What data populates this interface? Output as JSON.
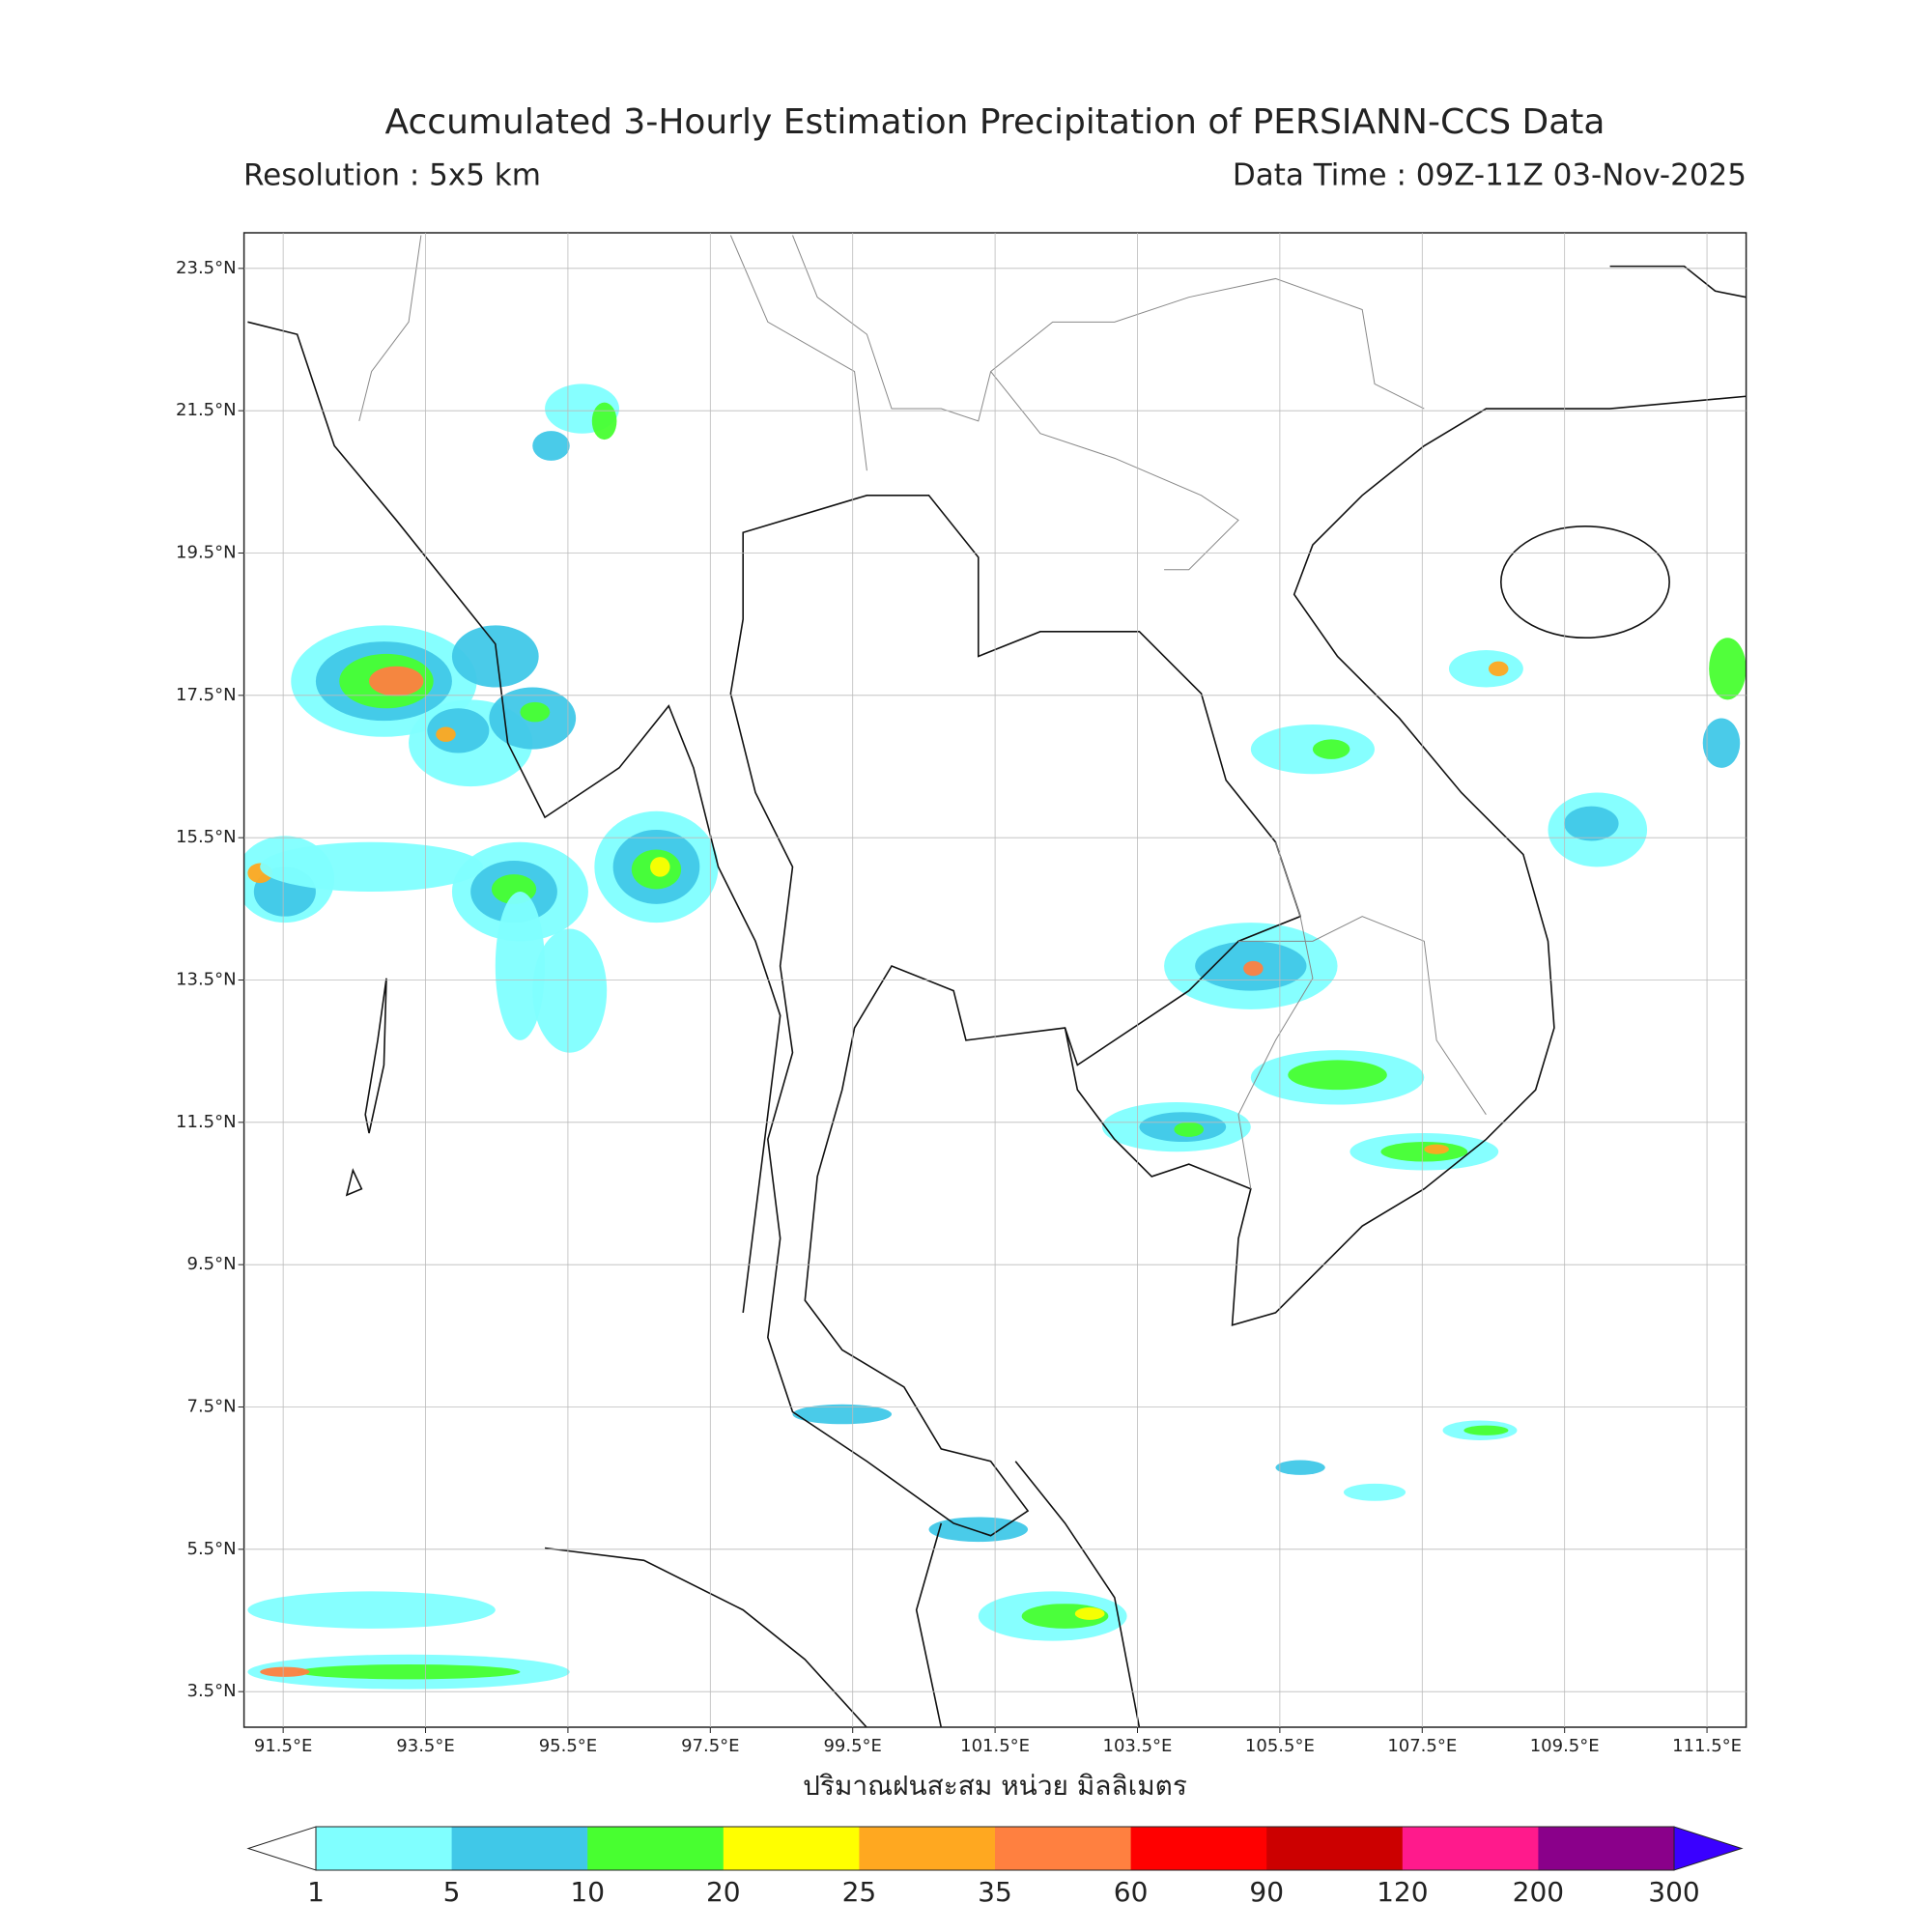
{
  "header": {
    "title": "Accumulated 3-Hourly Estimation Precipitation of PERSIANN-CCS Data",
    "resolution": "Resolution : 5x5 km",
    "data_time": "Data Time : 09Z-11Z 03-Nov-2025"
  },
  "map": {
    "xlim": [
      90.95,
      112.05
    ],
    "ylim": [
      3.0,
      24.0
    ],
    "grid": true,
    "xticks": [
      {
        "value": 91.5,
        "label": "91.5°E"
      },
      {
        "value": 93.5,
        "label": "93.5°E"
      },
      {
        "value": 95.5,
        "label": "95.5°E"
      },
      {
        "value": 97.5,
        "label": "97.5°E"
      },
      {
        "value": 99.5,
        "label": "99.5°E"
      },
      {
        "value": 101.5,
        "label": "101.5°E"
      },
      {
        "value": 103.5,
        "label": "103.5°E"
      },
      {
        "value": 105.5,
        "label": "105.5°E"
      },
      {
        "value": 107.5,
        "label": "107.5°E"
      },
      {
        "value": 109.5,
        "label": "109.5°E"
      },
      {
        "value": 111.5,
        "label": "111.5°E"
      }
    ],
    "yticks": [
      {
        "value": 23.5,
        "label": "23.5°N"
      },
      {
        "value": 21.5,
        "label": "21.5°N"
      },
      {
        "value": 19.5,
        "label": "19.5°N"
      },
      {
        "value": 17.5,
        "label": "17.5°N"
      },
      {
        "value": 15.5,
        "label": "15.5°N"
      },
      {
        "value": 13.5,
        "label": "13.5°N"
      },
      {
        "value": 11.5,
        "label": "11.5°N"
      },
      {
        "value": 9.5,
        "label": "9.5°N"
      },
      {
        "value": 7.5,
        "label": "7.5°N"
      },
      {
        "value": 5.5,
        "label": "5.5°N"
      },
      {
        "value": 3.5,
        "label": "3.5°N"
      }
    ]
  },
  "colorbar": {
    "label": "ปริมาณฝนสะสม หน่วย มิลลิเมตร",
    "bounds": [
      1,
      5,
      10,
      20,
      25,
      35,
      60,
      90,
      120,
      200,
      300
    ],
    "colors": [
      "#80ffff",
      "#40c8e8",
      "#48ff30",
      "#ffff00",
      "#ffa820",
      "#ff8040",
      "#ff0000",
      "#cc0000",
      "#ff1a8c",
      "#8a008a"
    ],
    "under_color": "#ffffff",
    "over_color": "#3a00ff"
  }
}
